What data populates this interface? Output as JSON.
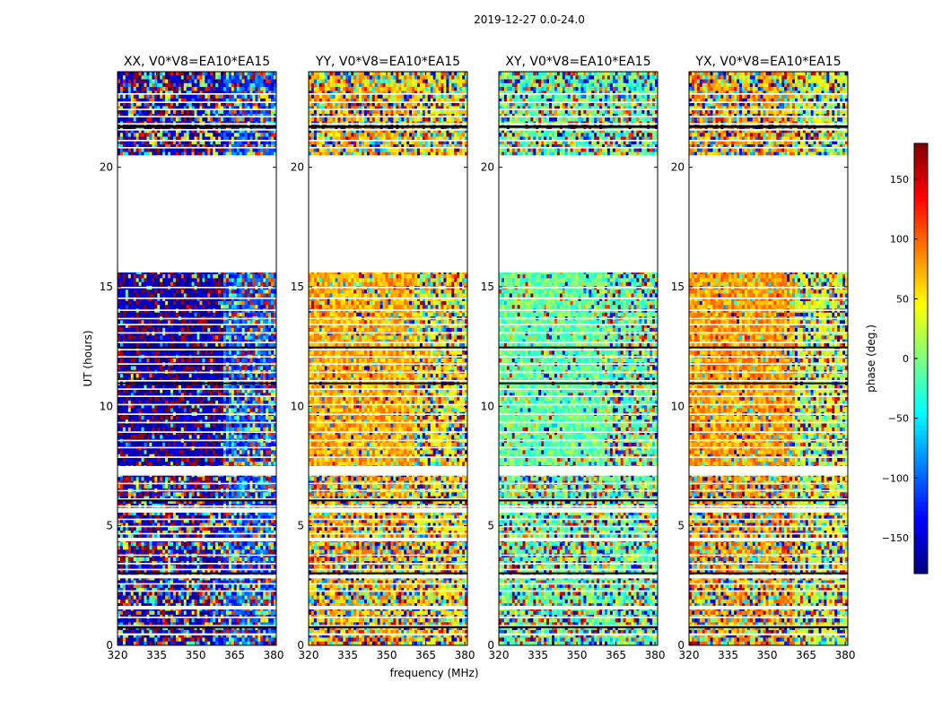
{
  "chart_data": {
    "type": "heatmap",
    "suptitle": "2019-12-27 0.0-24.0",
    "xlabel": "frequency (MHz)",
    "ylabel": "UT (hours)",
    "xlim": [
      320,
      381
    ],
    "ylim": [
      0,
      24
    ],
    "xticks": [
      "320",
      "335",
      "350",
      "365",
      "380"
    ],
    "xtick_values": [
      320,
      335,
      350,
      365,
      380
    ],
    "yticks": [
      "0",
      "5",
      "10",
      "15",
      "20"
    ],
    "ytick_values": [
      0,
      5,
      10,
      15,
      20
    ],
    "break_frequency_mhz": 361,
    "panels": [
      {
        "title": "XX, V0*V8=EA10*EA15",
        "low_band_phase": -165,
        "high_band_phase": -110
      },
      {
        "title": "YY, V0*V8=EA10*EA15",
        "low_band_phase": 75,
        "high_band_phase": 55
      },
      {
        "title": "XY, V0*V8=EA10*EA15",
        "low_band_phase": -10,
        "high_band_phase": -10
      },
      {
        "title": "YX, V0*V8=EA10*EA15",
        "low_band_phase": 80,
        "high_band_phase": 30
      }
    ],
    "data_gaps_ut_hours": [
      [
        20.5,
        15.6
      ],
      [
        7.5,
        7.1
      ],
      [
        5.75,
        5.55
      ],
      [
        4.5,
        4.35
      ],
      [
        2.95,
        2.8
      ],
      [
        1.65,
        1.5
      ],
      [
        0.5,
        0.42
      ]
    ],
    "flag_lines_ut_hours": [
      23.1,
      22.75,
      22.45,
      22.15,
      21.85,
      21.6,
      21.15,
      20.85,
      15.0,
      14.55,
      14.05,
      13.7,
      13.45,
      13.1,
      12.7,
      12.4,
      12.1,
      11.8,
      11.45,
      11.1,
      10.75,
      10.45,
      10.1,
      9.7,
      9.35,
      8.95,
      8.6,
      8.3,
      7.9,
      6.8,
      6.5,
      6.15,
      5.85,
      5.3,
      5.0,
      4.7,
      3.8,
      3.45,
      3.2,
      2.6,
      2.3,
      1.2,
      0.85
    ],
    "dark_bands_ut_hours": [
      [
        21.75,
        21.65
      ],
      [
        12.5,
        12.45
      ],
      [
        11.0,
        10.95
      ],
      [
        6.1,
        6.05
      ],
      [
        3.05,
        3.0
      ],
      [
        0.8,
        0.72
      ]
    ],
    "colorbar": {
      "label": "phase (deg.)",
      "range": [
        -180,
        180
      ],
      "ticks": [
        "150",
        "100",
        "50",
        "0",
        "−50",
        "−100",
        "−150"
      ],
      "tick_values": [
        150,
        100,
        50,
        0,
        -50,
        -100,
        -150
      ],
      "colormap": "jet"
    },
    "colors": {
      "axes": "#000000",
      "background": "#ffffff"
    }
  }
}
